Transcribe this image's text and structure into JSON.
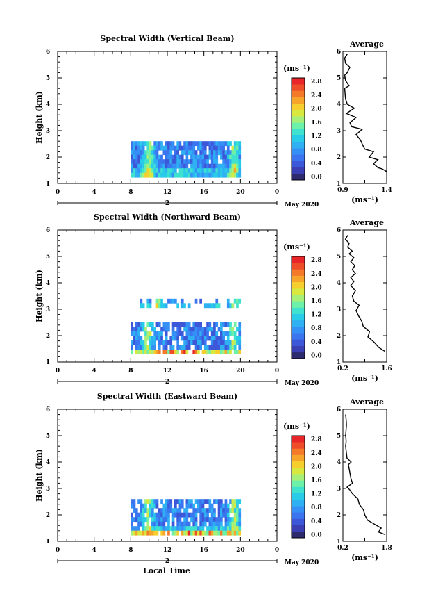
{
  "page": {
    "bottom_xlabel": "Local Time"
  },
  "colormap": {
    "colors": [
      "#2d2a6e",
      "#3b3fb4",
      "#3c58d8",
      "#3a74ef",
      "#3590f6",
      "#2eb0f3",
      "#28cbe8",
      "#3fe1cf",
      "#6df0a7",
      "#a6f07a",
      "#d8e83f",
      "#f6cf2e",
      "#f7a52a",
      "#f47a2a",
      "#ef4c2a",
      "#e8262a"
    ]
  },
  "chart_data": [
    {
      "type": "heatmap",
      "title": "Spectral Width (Vertical Beam)",
      "ylabel": "Height (km)",
      "xlabel": "Local Time",
      "x_ticks": [
        "0",
        "4",
        "8",
        "12",
        "16",
        "20",
        "0"
      ],
      "xlim": [
        0,
        24
      ],
      "y_ticks": [
        "1",
        "2",
        "3",
        "4",
        "5",
        "6"
      ],
      "ylim": [
        1,
        6
      ],
      "date_day": "2",
      "date_month_year": "May 2020",
      "data_extent": {
        "x": [
          8,
          20
        ],
        "y": [
          1.4,
          2.6
        ]
      },
      "colorbar": {
        "unit": "(ms⁻¹)",
        "ticks": [
          "0.0",
          "0.4",
          "0.8",
          "1.2",
          "1.6",
          "2.0",
          "2.4",
          "2.8"
        ],
        "range": [
          0,
          3.0
        ]
      },
      "profile": {
        "title": "Average",
        "xlabel": "(ms⁻¹)",
        "x_ticks": [
          "0.9",
          "1.4"
        ],
        "xlim": [
          0.9,
          1.4
        ],
        "y_ticks": [
          "1",
          "2",
          "3",
          "4",
          "5",
          "6"
        ],
        "ylim": [
          1,
          6
        ],
        "points": [
          [
            1.4,
            1.45
          ],
          [
            1.35,
            1.55
          ],
          [
            1.3,
            1.6
          ],
          [
            1.25,
            1.75
          ],
          [
            1.3,
            1.9
          ],
          [
            1.2,
            2.0
          ],
          [
            1.25,
            2.2
          ],
          [
            1.15,
            2.3
          ],
          [
            1.12,
            2.5
          ],
          [
            1.1,
            2.65
          ],
          [
            1.05,
            2.85
          ],
          [
            1.12,
            3.05
          ],
          [
            1.0,
            3.15
          ],
          [
            0.98,
            3.3
          ],
          [
            1.05,
            3.5
          ],
          [
            0.94,
            3.65
          ],
          [
            1.03,
            3.85
          ],
          [
            0.95,
            4.0
          ],
          [
            0.93,
            4.2
          ],
          [
            0.92,
            4.6
          ],
          [
            0.97,
            4.7
          ],
          [
            0.93,
            4.9
          ],
          [
            0.92,
            5.1
          ],
          [
            0.95,
            5.2
          ],
          [
            0.98,
            5.4
          ],
          [
            0.93,
            5.55
          ],
          [
            0.92,
            5.75
          ],
          [
            0.95,
            5.9
          ]
        ]
      }
    },
    {
      "type": "heatmap",
      "title": "Spectral Width (Northward Beam)",
      "ylabel": "Height (km)",
      "xlabel": "Local Time",
      "x_ticks": [
        "0",
        "4",
        "8",
        "12",
        "16",
        "20",
        "0"
      ],
      "xlim": [
        0,
        24
      ],
      "y_ticks": [
        "1",
        "2",
        "3",
        "4",
        "5",
        "6"
      ],
      "ylim": [
        1,
        6
      ],
      "date_day": "2",
      "date_month_year": "May 2020",
      "data_extent": {
        "x": [
          8,
          20
        ],
        "y": [
          1.35,
          2.5
        ]
      },
      "data_extent_upper": {
        "x": [
          9,
          20
        ],
        "y": [
          3.2,
          3.4
        ]
      },
      "colorbar": {
        "unit": "(ms⁻¹)",
        "ticks": [
          "0.0",
          "0.4",
          "0.8",
          "1.2",
          "1.6",
          "2.0",
          "2.4",
          "2.8"
        ],
        "range": [
          0,
          3.0
        ]
      },
      "profile": {
        "title": "Average",
        "xlabel": "(ms⁻¹)",
        "x_ticks": [
          "0.2",
          "1.6"
        ],
        "xlim": [
          0.2,
          1.6
        ],
        "y_ticks": [
          "1",
          "2",
          "3",
          "4",
          "5",
          "6"
        ],
        "ylim": [
          1,
          6
        ],
        "points": [
          [
            1.55,
            1.4
          ],
          [
            1.35,
            1.55
          ],
          [
            1.2,
            1.75
          ],
          [
            1.0,
            1.95
          ],
          [
            1.05,
            2.15
          ],
          [
            0.85,
            2.35
          ],
          [
            0.8,
            2.55
          ],
          [
            0.7,
            2.75
          ],
          [
            0.62,
            2.95
          ],
          [
            0.72,
            3.15
          ],
          [
            0.55,
            3.3
          ],
          [
            0.5,
            3.5
          ],
          [
            0.6,
            3.7
          ],
          [
            0.45,
            3.9
          ],
          [
            0.55,
            4.05
          ],
          [
            0.45,
            4.2
          ],
          [
            0.6,
            4.35
          ],
          [
            0.5,
            4.5
          ],
          [
            0.58,
            4.65
          ],
          [
            0.45,
            4.8
          ],
          [
            0.55,
            4.95
          ],
          [
            0.4,
            5.1
          ],
          [
            0.5,
            5.2
          ],
          [
            0.35,
            5.35
          ],
          [
            0.4,
            5.5
          ],
          [
            0.28,
            5.65
          ],
          [
            0.35,
            5.8
          ]
        ]
      }
    },
    {
      "type": "heatmap",
      "title": "Spectral Width (Eastward Beam)",
      "ylabel": "Height (km)",
      "xlabel": "Local Time",
      "x_ticks": [
        "0",
        "4",
        "8",
        "12",
        "16",
        "20",
        "0"
      ],
      "xlim": [
        0,
        24
      ],
      "y_ticks": [
        "1",
        "2",
        "3",
        "4",
        "5",
        "6"
      ],
      "ylim": [
        1,
        6
      ],
      "date_day": "2",
      "date_month_year": "May 2020",
      "data_extent": {
        "x": [
          8,
          20
        ],
        "y": [
          1.35,
          2.6
        ]
      },
      "colorbar": {
        "unit": "(ms⁻¹)",
        "ticks": [
          "0.0",
          "0.4",
          "0.8",
          "1.2",
          "1.6",
          "2.0",
          "2.4",
          "2.8"
        ],
        "range": [
          0,
          3.0
        ]
      },
      "profile": {
        "title": "Average",
        "xlabel": "(ms⁻¹)",
        "x_ticks": [
          "0.2",
          "1.8"
        ],
        "xlim": [
          0.2,
          1.8
        ],
        "y_ticks": [
          "1",
          "2",
          "3",
          "4",
          "5",
          "6"
        ],
        "ylim": [
          1,
          6
        ],
        "points": [
          [
            1.75,
            1.25
          ],
          [
            1.5,
            1.35
          ],
          [
            1.6,
            1.5
          ],
          [
            1.35,
            1.65
          ],
          [
            1.1,
            1.8
          ],
          [
            1.0,
            2.0
          ],
          [
            0.95,
            2.2
          ],
          [
            0.8,
            2.4
          ],
          [
            0.75,
            2.6
          ],
          [
            0.55,
            2.8
          ],
          [
            0.45,
            2.95
          ],
          [
            0.35,
            3.05
          ],
          [
            0.55,
            3.2
          ],
          [
            0.5,
            3.35
          ],
          [
            0.4,
            3.9
          ],
          [
            0.5,
            4.0
          ],
          [
            0.35,
            4.15
          ],
          [
            0.3,
            4.6
          ],
          [
            0.32,
            4.8
          ],
          [
            0.3,
            5.0
          ],
          [
            0.33,
            5.4
          ],
          [
            0.32,
            5.6
          ],
          [
            0.3,
            5.8
          ]
        ]
      }
    }
  ]
}
